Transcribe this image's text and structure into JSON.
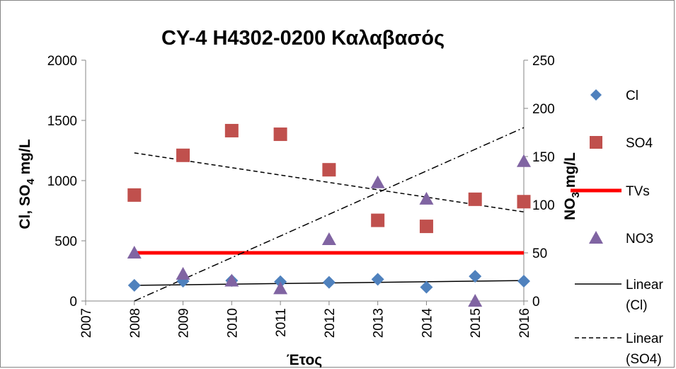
{
  "chart_data": {
    "type": "scatter",
    "title": "CY-4 H4302-0200 Καλαβασός",
    "xlabel": "Έτος",
    "ylabel_left": "Cl, SO4 mg/L",
    "ylabel_left_sub": "4",
    "ylabel_right": "NO3 mg/L",
    "ylabel_right_sub": "3",
    "xlim": [
      2007,
      2016
    ],
    "ylim_left": [
      0,
      2000
    ],
    "ylim_right": [
      0,
      250
    ],
    "x_ticks": [
      2007,
      2008,
      2009,
      2010,
      2011,
      2012,
      2013,
      2014,
      2015,
      2016
    ],
    "y_left_ticks": [
      0,
      500,
      1000,
      1500,
      2000
    ],
    "y_right_ticks": [
      0,
      50,
      100,
      150,
      200,
      250
    ],
    "grid": false,
    "legend_position": "right",
    "series": [
      {
        "name": "Cl",
        "axis": "left",
        "marker": "diamond",
        "color": "#4F81BD",
        "x": [
          2008,
          2009,
          2010,
          2011,
          2012,
          2013,
          2014,
          2015,
          2016
        ],
        "y": [
          130,
          165,
          170,
          160,
          155,
          180,
          115,
          205,
          165
        ]
      },
      {
        "name": "SO4",
        "axis": "left",
        "marker": "square",
        "color": "#C0504D",
        "x": [
          2008,
          2009,
          2010,
          2011,
          2012,
          2013,
          2014,
          2015,
          2016
        ],
        "y": [
          880,
          1210,
          1415,
          1385,
          1090,
          670,
          620,
          845,
          825
        ]
      },
      {
        "name": "TVs",
        "axis": "left",
        "marker": "line",
        "color": "#FF0000",
        "x": [
          2008,
          2016
        ],
        "y": [
          400,
          400
        ]
      },
      {
        "name": "NO3",
        "axis": "right",
        "marker": "triangle",
        "color": "#8064A2",
        "x": [
          2008,
          2009,
          2010,
          2011,
          2012,
          2013,
          2014,
          2015,
          2016
        ],
        "y": [
          50,
          28,
          21,
          13,
          64,
          123,
          106,
          0,
          145
        ]
      },
      {
        "name": "Linear (Cl)",
        "axis": "left",
        "marker": "trend-solid",
        "color": "#000000",
        "x": [
          2008,
          2016
        ],
        "y": [
          130,
          170
        ]
      },
      {
        "name": "Linear (SO4)",
        "axis": "left",
        "marker": "trend-dashed",
        "color": "#000000",
        "x": [
          2008,
          2016
        ],
        "y": [
          1230,
          740
        ]
      },
      {
        "name": "",
        "axis": "right",
        "marker": "trend-dashdot",
        "color": "#000000",
        "x": [
          2008,
          2016
        ],
        "y": [
          0,
          180
        ]
      }
    ],
    "legend_items": [
      {
        "label": "Cl",
        "symbol": "diamond",
        "color": "#4F81BD"
      },
      {
        "label": "SO4",
        "symbol": "square",
        "color": "#C0504D"
      },
      {
        "label": "TVs",
        "symbol": "thick-line",
        "color": "#FF0000"
      },
      {
        "label": "NO3",
        "symbol": "triangle",
        "color": "#8064A2"
      },
      {
        "label": "Linear",
        "label2": "(Cl)",
        "symbol": "solid-line",
        "color": "#000000"
      },
      {
        "label": "Linear",
        "label2": "(SO4)",
        "symbol": "dashed-line",
        "color": "#000000"
      }
    ]
  }
}
